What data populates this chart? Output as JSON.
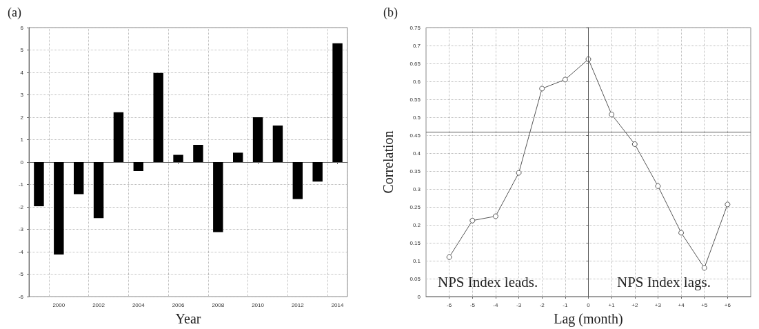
{
  "chart_data": [
    {
      "type": "bar",
      "title": "(a)",
      "xlabel": "Year",
      "categories": [
        null,
        "2000",
        null,
        "2002",
        null,
        "2004",
        null,
        "2006",
        null,
        "2008",
        null,
        "2010",
        null,
        "2012",
        null,
        "2014"
      ],
      "values": [
        -1.97,
        -4.12,
        -1.43,
        -2.5,
        2.22,
        -0.4,
        3.98,
        0.32,
        0.77,
        -3.12,
        0.42,
        2.0,
        1.63,
        -1.65,
        -0.87,
        5.3
      ],
      "color": "#000000",
      "ylim": [
        -6,
        6
      ],
      "yticks": [
        -6,
        -5,
        -4,
        -3,
        -2,
        -1,
        0,
        1,
        2,
        3,
        4,
        5,
        6
      ],
      "grid": true
    },
    {
      "type": "line",
      "title": "(b)",
      "xlabel": "Lag (month)",
      "ylabel": "Correlation",
      "x": [
        -6,
        -5,
        -4,
        -3,
        -2,
        -1,
        0,
        1,
        2,
        3,
        4,
        5,
        6
      ],
      "values": [
        0.11,
        0.212,
        0.224,
        0.345,
        0.58,
        0.605,
        0.662,
        0.508,
        0.425,
        0.308,
        0.178,
        0.08,
        0.257
      ],
      "color": "#555555",
      "marker": "circle",
      "line_style": "solid",
      "xlim": [
        -7,
        7
      ],
      "xticks": [
        -6,
        -5,
        -4,
        -3,
        -2,
        -1,
        0,
        {
          "value": 1,
          "label": "+1"
        },
        {
          "value": 2,
          "label": "+2"
        },
        {
          "value": 3,
          "label": "+3"
        },
        {
          "value": 4,
          "label": "+4"
        },
        {
          "value": 5,
          "label": "+5"
        },
        {
          "value": 6,
          "label": "+6"
        }
      ],
      "ylim": [
        0,
        0.75
      ],
      "yticks": [
        0,
        0.05,
        0.1,
        0.15,
        0.2,
        0.25,
        0.3,
        0.35,
        0.4,
        0.45,
        0.5,
        0.55,
        0.6,
        0.65,
        0.7,
        0.75
      ],
      "ref_lines": [
        {
          "axis": "y",
          "value": 0.46,
          "color": "#555555"
        },
        {
          "axis": "x",
          "value": 0,
          "color": "#555555"
        }
      ],
      "annotations": [
        "NPS Index leads.",
        "NPS Index lags."
      ],
      "grid": true
    }
  ]
}
